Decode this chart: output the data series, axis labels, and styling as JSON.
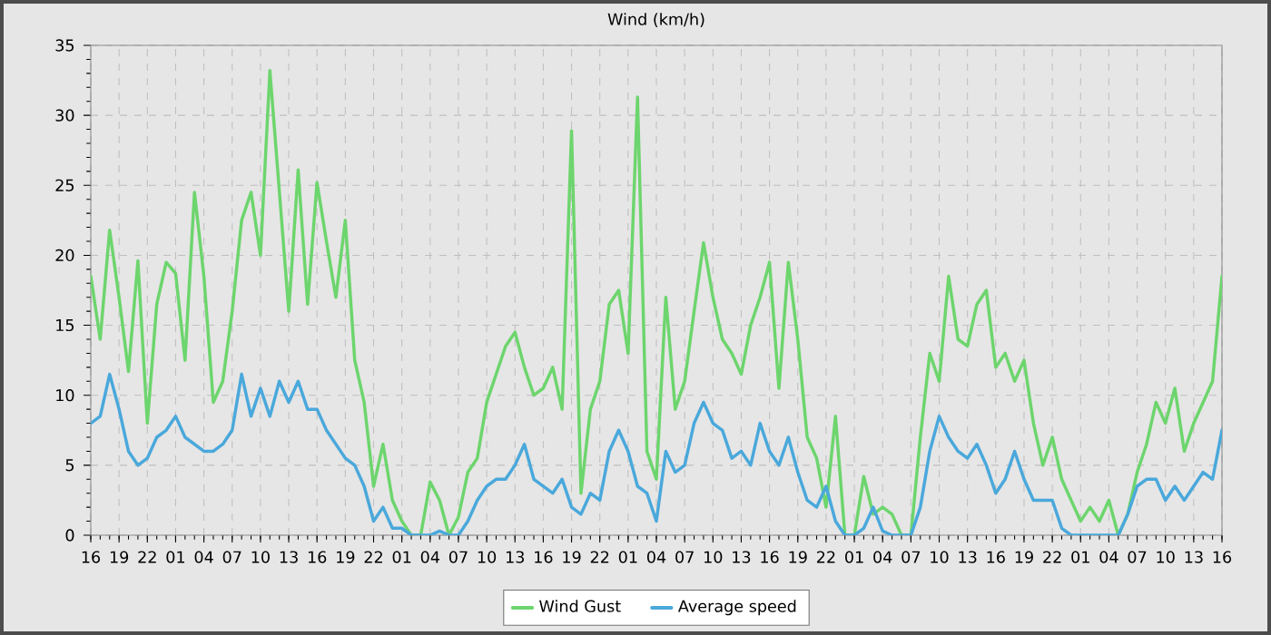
{
  "chart_data": {
    "type": "line",
    "title": "Wind (km/h)",
    "categories": [
      "16",
      null,
      null,
      "19",
      null,
      null,
      "22",
      null,
      null,
      "01",
      null,
      null,
      "04",
      null,
      null,
      "07",
      null,
      null,
      "10",
      null,
      null,
      "13",
      null,
      null,
      "16",
      null,
      null,
      "19",
      null,
      null,
      "22",
      null,
      null,
      "01",
      null,
      null,
      "04",
      null,
      null,
      "07",
      null,
      null,
      "10",
      null,
      null,
      "13",
      null,
      null,
      "16",
      null,
      null,
      "19",
      null,
      null,
      "22",
      null,
      null,
      "01",
      null,
      null,
      "04",
      null,
      null,
      "07",
      null,
      null,
      "10",
      null,
      null,
      "13",
      null,
      null,
      "16",
      null,
      null,
      "19",
      null,
      null,
      "22",
      null,
      null,
      "01",
      null,
      null,
      "04",
      null,
      null,
      "07",
      null,
      null,
      "10",
      null,
      null,
      "13",
      null,
      null,
      "16",
      null,
      null,
      "19",
      null,
      null,
      "22",
      null,
      null,
      "01",
      null,
      null,
      "04",
      null,
      null,
      "07",
      null,
      null,
      "10",
      null,
      null,
      "13",
      null,
      null,
      "16"
    ],
    "ylim": [
      0,
      35
    ],
    "yticks": [
      0,
      5,
      10,
      15,
      20,
      25,
      30,
      35
    ],
    "grid": true,
    "legend": "bottom",
    "line_style": "solid",
    "series": [
      {
        "name": "Wind Gust",
        "color": "#6dd56d",
        "values": [
          18.5,
          14,
          21.8,
          17,
          11.7,
          19.6,
          8,
          16.5,
          19.5,
          18.7,
          12.5,
          24.5,
          18.5,
          9.5,
          11,
          16,
          22.5,
          24.5,
          20,
          33.2,
          24.6,
          16,
          26.1,
          16.5,
          25.2,
          21,
          17,
          22.5,
          12.5,
          9.5,
          3.5,
          6.5,
          2.5,
          1,
          0,
          0,
          3.8,
          2.5,
          0,
          1.3,
          4.5,
          5.5,
          9.5,
          11.5,
          13.5,
          14.5,
          12,
          10,
          10.5,
          12,
          9,
          28.9,
          3,
          9,
          11,
          16.5,
          17.5,
          13,
          31.3,
          6,
          4,
          17,
          9,
          11,
          16,
          20.9,
          17,
          14,
          13,
          11.5,
          15,
          17,
          19.5,
          10.5,
          19.5,
          14,
          7,
          5.5,
          2,
          8.5,
          0,
          0,
          4.2,
          1.5,
          2,
          1.5,
          0,
          0,
          7,
          13,
          11,
          18.5,
          14,
          13.5,
          16.5,
          17.5,
          12,
          13,
          11,
          12.5,
          8,
          5,
          7,
          4,
          2.5,
          1,
          2,
          1,
          2.5,
          0,
          1.5,
          4.5,
          6.5,
          9.5,
          8,
          10.5,
          6,
          8,
          9.5,
          11,
          18.5
        ]
      },
      {
        "name": "Average speed",
        "color": "#4aa8db",
        "values": [
          8,
          8.5,
          11.5,
          9,
          6,
          5,
          5.5,
          7,
          7.5,
          8.5,
          7,
          6.5,
          6,
          6,
          6.5,
          7.5,
          11.5,
          8.5,
          10.5,
          8.5,
          11,
          9.5,
          11,
          9,
          9,
          7.5,
          6.5,
          5.5,
          5,
          3.5,
          1,
          2,
          0.5,
          0.5,
          0,
          0,
          0,
          0.3,
          0,
          0,
          1,
          2.5,
          3.5,
          4,
          4,
          5,
          6.5,
          4,
          3.5,
          3,
          4,
          2,
          1.5,
          3,
          2.5,
          6,
          7.5,
          6,
          3.5,
          3,
          1,
          6,
          4.5,
          5,
          8,
          9.5,
          8,
          7.5,
          5.5,
          6,
          5,
          8,
          6,
          5,
          7,
          4.5,
          2.5,
          2,
          3.5,
          1,
          0,
          0,
          0.5,
          2,
          0.3,
          0,
          0,
          0,
          2,
          6,
          8.5,
          7,
          6,
          5.5,
          6.5,
          5,
          3,
          4,
          6,
          4,
          2.5,
          2.5,
          2.5,
          0.5,
          0,
          0,
          0,
          0,
          0,
          0,
          1.5,
          3.5,
          4,
          4,
          2.5,
          3.5,
          2.5,
          3.5,
          4.5,
          4,
          7.5
        ]
      }
    ]
  }
}
